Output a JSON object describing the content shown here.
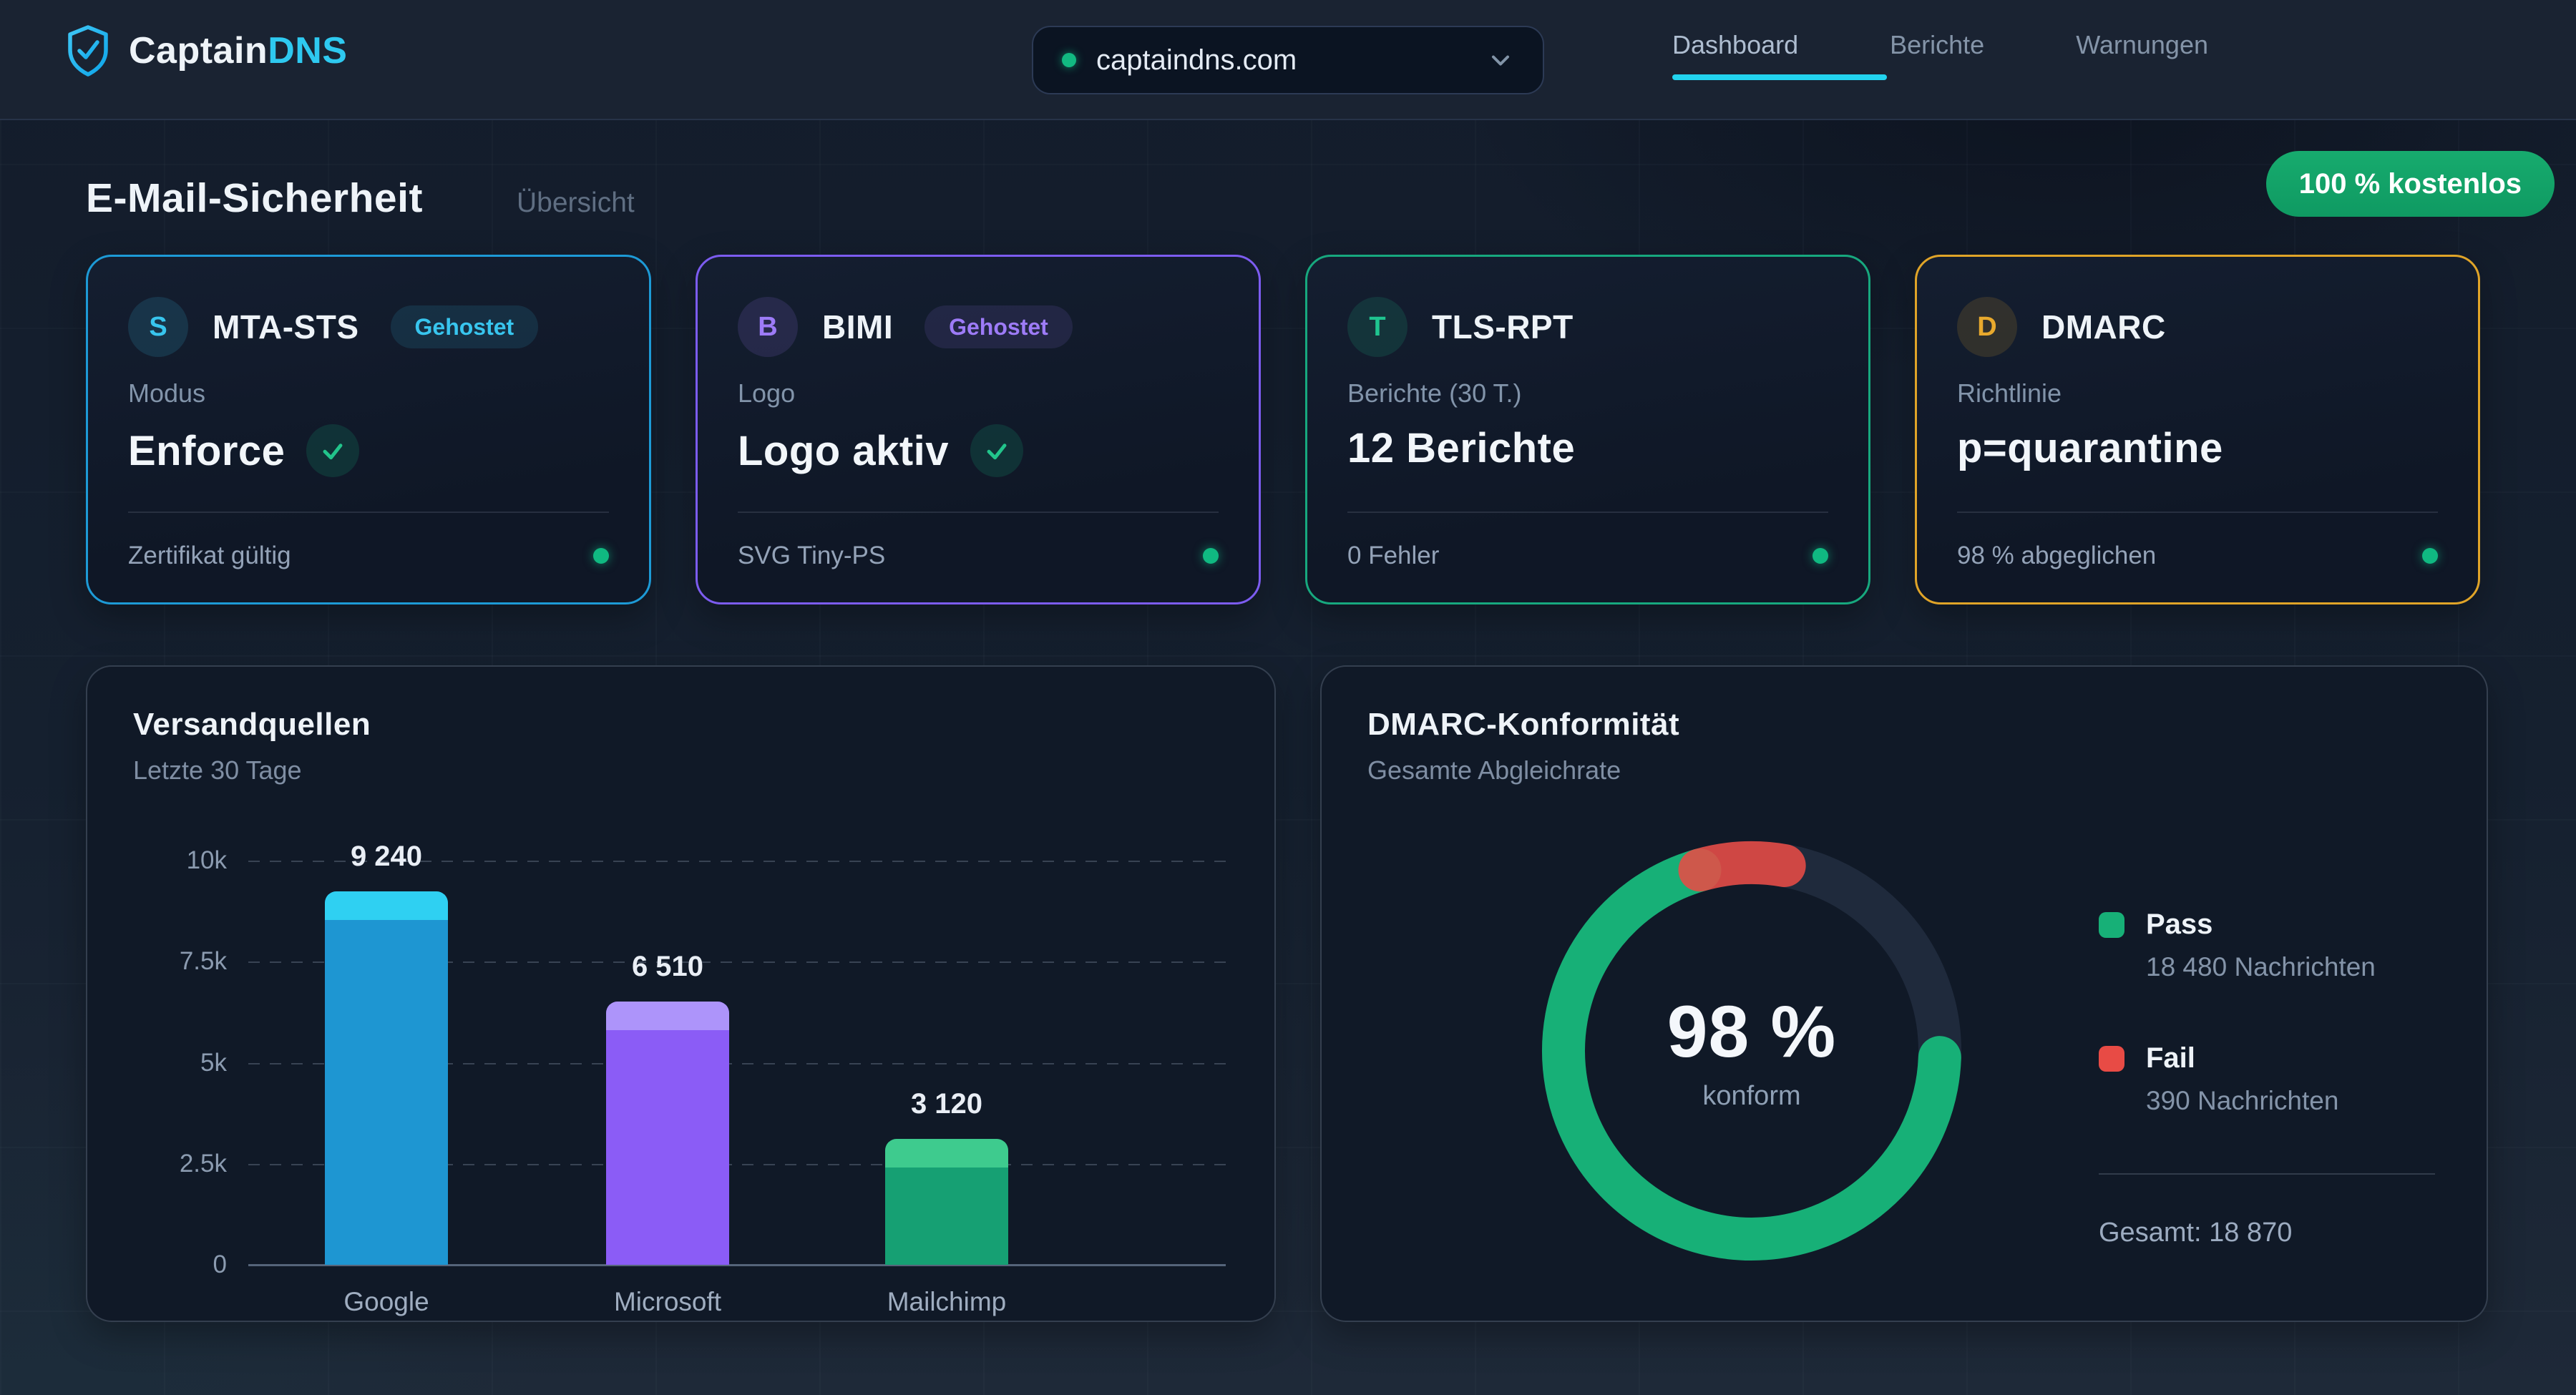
{
  "header": {
    "brand": {
      "primary": "Captain",
      "accent": "DNS"
    },
    "domain_selector": {
      "value": "captaindns.com"
    },
    "nav": [
      {
        "label": "Dashboard",
        "active": true
      },
      {
        "label": "Berichte",
        "active": false
      },
      {
        "label": "Warnungen",
        "active": false
      }
    ]
  },
  "page_header": {
    "title": "E-Mail-Sicherheit",
    "subtitle": "Übersicht",
    "badge": "100 % kostenlos"
  },
  "status_cards": [
    {
      "icon_letter": "S",
      "icon_color": "#38c5ee",
      "accent": "#1d9ad6",
      "title": "MTA-STS",
      "badge": "Gehostet",
      "label": "Modus",
      "value": "Enforce",
      "has_check": true,
      "footer": "Zertifikat gültig"
    },
    {
      "icon_letter": "B",
      "icon_color": "#9d7bf7",
      "accent": "#7c5cf0",
      "title": "BIMI",
      "badge": "Gehostet",
      "label": "Logo",
      "value": "Logo aktiv",
      "has_check": true,
      "footer": "SVG Tiny-PS"
    },
    {
      "icon_letter": "T",
      "icon_color": "#1fc48f",
      "accent": "#17a87e",
      "title": "TLS-RPT",
      "badge": "",
      "label": "Berichte (30 T.)",
      "value": "12 Berichte",
      "has_check": false,
      "footer": "0 Fehler"
    },
    {
      "icon_letter": "D",
      "icon_color": "#e8a92d",
      "accent": "#e0a428",
      "title": "DMARC",
      "badge": "",
      "label": "Richtlinie",
      "value": "p=quarantine",
      "has_check": false,
      "footer": "98 % abgeglichen"
    }
  ],
  "chart_data": [
    {
      "type": "bar",
      "title": "Versandquellen",
      "subtitle": "Letzte 30 Tage",
      "categories": [
        "Google",
        "Microsoft",
        "Mailchimp"
      ],
      "values": [
        9240,
        6510,
        3120
      ],
      "value_labels": [
        "9 240",
        "6 510",
        "3 120"
      ],
      "bar_colors": [
        "#1e96d2",
        "#8b5cf6",
        "#16a073"
      ],
      "bar_cap_colors": [
        "#2fd0f2",
        "#ad94fa",
        "#3ecb8e"
      ],
      "ylim": [
        0,
        10000
      ],
      "yticks": [
        {
          "value": 10000,
          "label": "10k"
        },
        {
          "value": 7500,
          "label": "7.5k"
        },
        {
          "value": 5000,
          "label": "5k"
        },
        {
          "value": 2500,
          "label": "2.5k"
        },
        {
          "value": 0,
          "label": "0"
        }
      ],
      "grid": "dashed horizontal",
      "legend": "none"
    },
    {
      "type": "donut",
      "title": "DMARC-Konformität",
      "subtitle": "Gesamte Abgleichrate",
      "center_value": "98 %",
      "center_label": "konform",
      "percent_pass": 98,
      "segments": [
        {
          "name": "Pass",
          "messages": 18480,
          "label": "18 480 Nachrichten",
          "color": "#17b077"
        },
        {
          "name": "Fail",
          "messages": 390,
          "label": "390 Nachrichten",
          "color": "#e84b45"
        }
      ],
      "total": 18870,
      "total_label": "Gesamt: 18 870",
      "track_color": "#1f2a3c",
      "legend_position": "right"
    }
  ]
}
